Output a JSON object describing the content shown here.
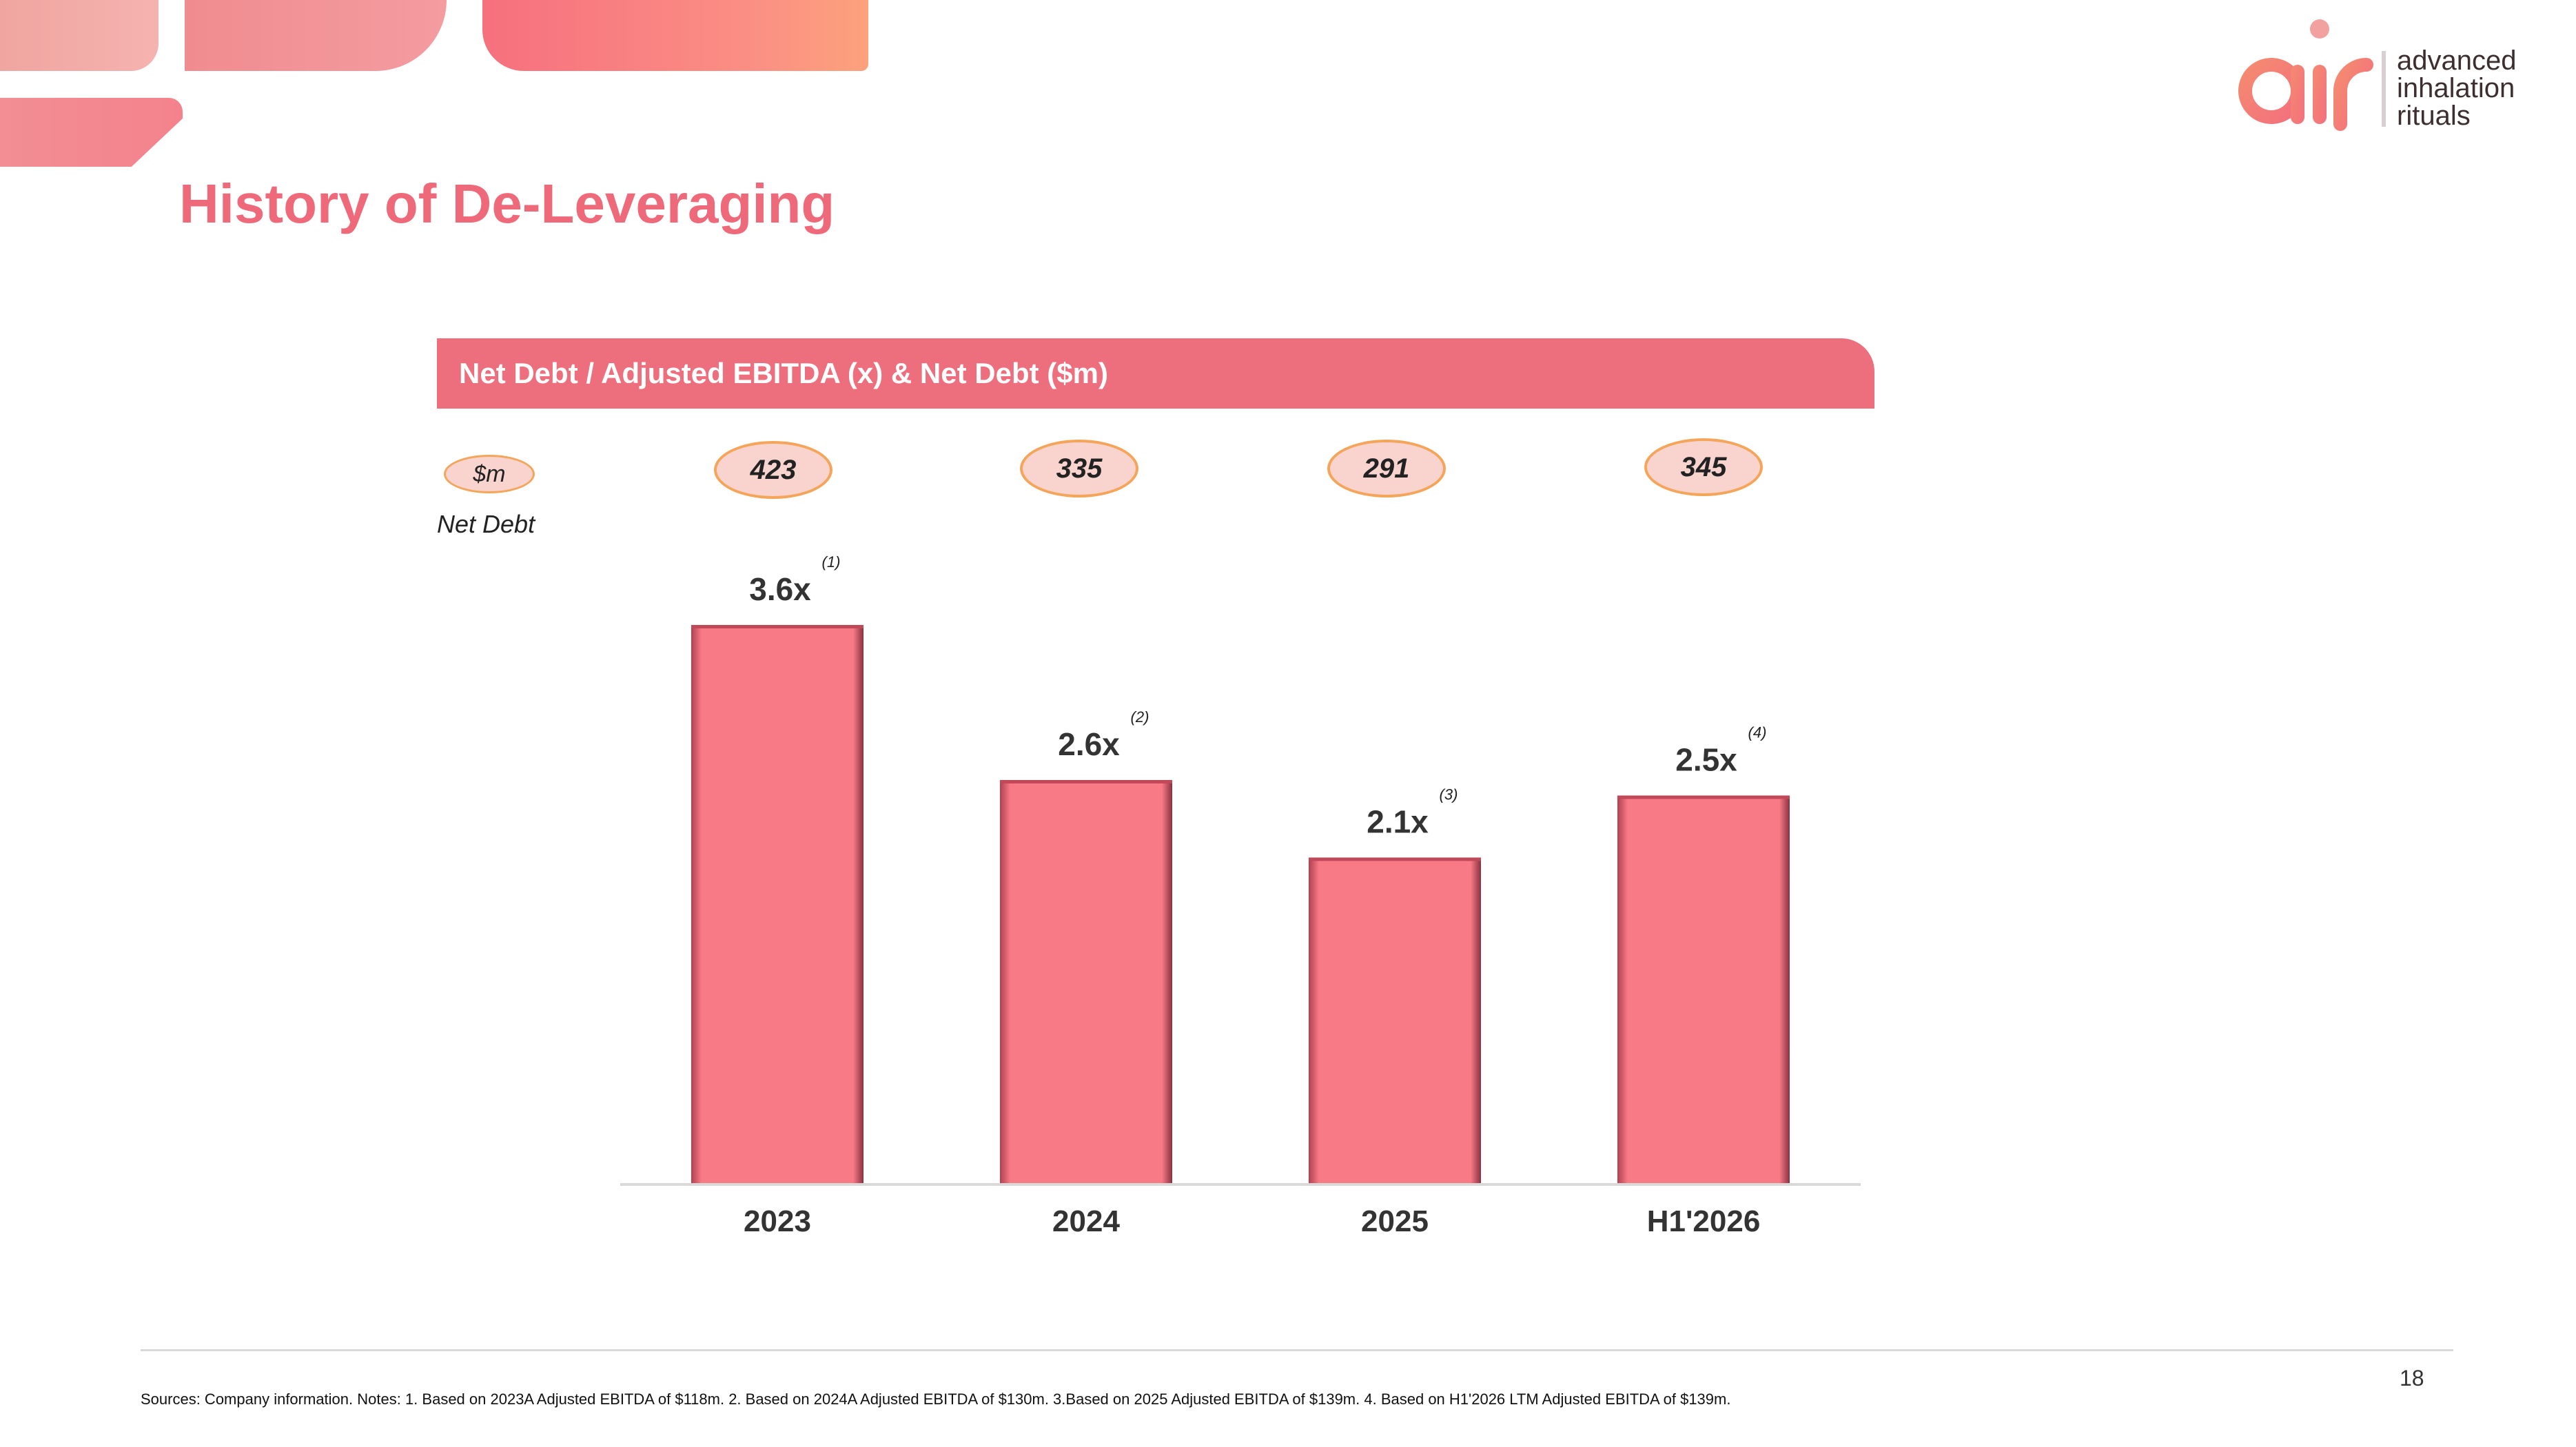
{
  "page_title": "History of De-Leveraging",
  "logo": {
    "text_lines": [
      "advanced",
      "inhalation",
      "rituals"
    ],
    "wordmark": "air"
  },
  "panel": {
    "title": "Net Debt / Adjusted EBITDA (x) & Net Debt ($m)",
    "unit_pill": "$m",
    "unit_label": "Net Debt",
    "net_debt": [
      "423",
      "335",
      "291",
      "345"
    ]
  },
  "colors": {
    "accent": "#ee6a7a",
    "bar": "#f87a86",
    "pill_border": "#f4a55a",
    "pill_fill": "#f9d4ce"
  },
  "chart_data": {
    "type": "bar",
    "categories": [
      "2023",
      "2024",
      "2025",
      "H1'2026"
    ],
    "values": [
      3.6,
      2.6,
      2.1,
      2.5
    ],
    "labels": [
      "3.6x",
      "2.6x",
      "2.1x",
      "2.5x"
    ],
    "notes": [
      "(1)",
      "(2)",
      "(3)",
      "(4)"
    ],
    "title": "Net Debt / Adjusted EBITDA (x) & Net Debt ($m)",
    "ylim": [
      0,
      4
    ],
    "grid": false
  },
  "footer": {
    "page_number": "18",
    "sources": "Sources: Company information. Notes: 1. Based on 2023A Adjusted EBITDA of $118m. 2. Based on 2024A Adjusted EBITDA of $130m. 3.Based on 2025 Adjusted EBITDA of $139m. 4. Based on H1'2026 LTM Adjusted EBITDA of $139m."
  }
}
